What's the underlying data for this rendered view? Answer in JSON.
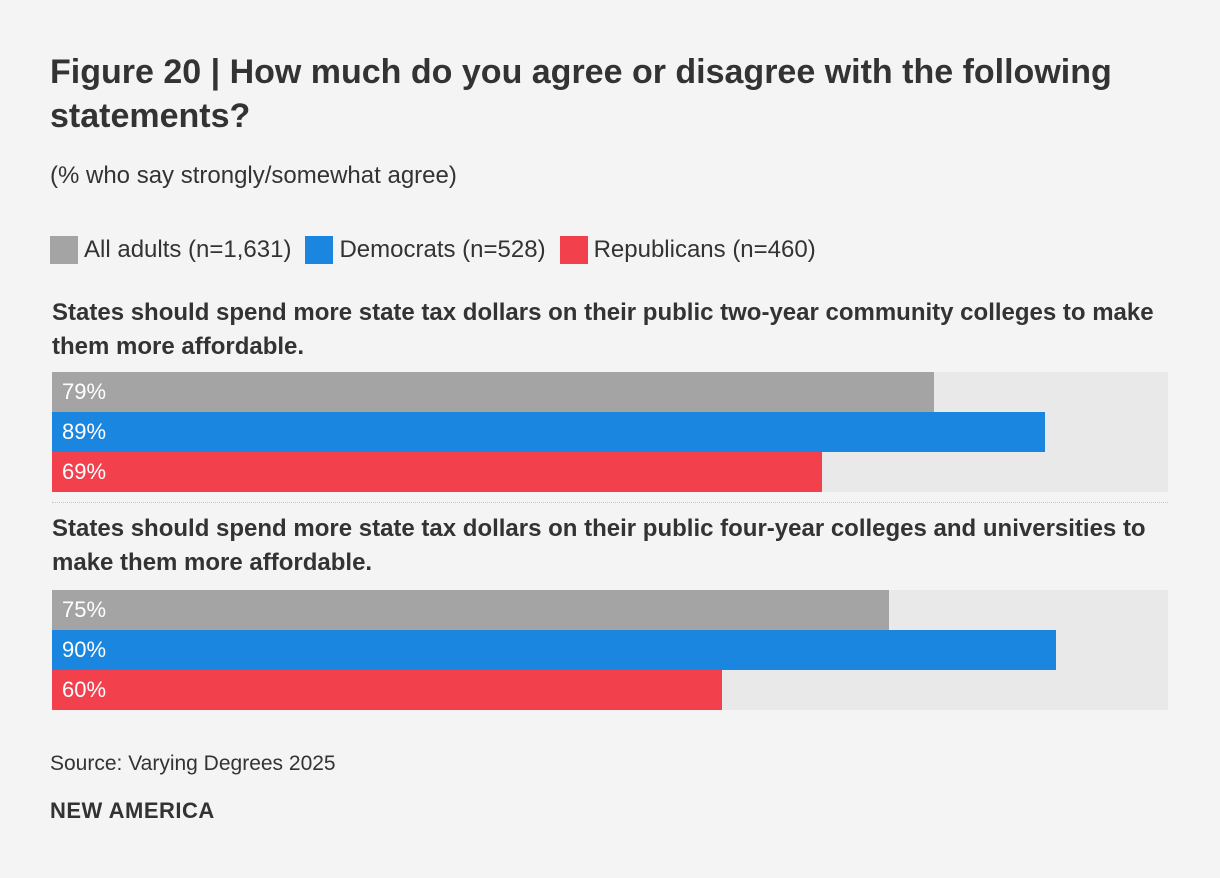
{
  "chart_data": {
    "type": "bar",
    "orientation": "horizontal",
    "title": "Figure 20 | How much do you agree or disagree with the following statements?",
    "subtitle": "(% who say strongly/somewhat agree)",
    "xlim": [
      0,
      100
    ],
    "unit": "%",
    "series": [
      {
        "name": "All adults (n=1,631)",
        "color": "#a4a4a4"
      },
      {
        "name": "Democrats (n=528)",
        "color": "#1a86e0"
      },
      {
        "name": "Republicans (n=460)",
        "color": "#f2404c"
      }
    ],
    "groups": [
      {
        "label": "States should spend more state tax dollars on their public two-year community colleges to make them more affordable.",
        "values": [
          79,
          89,
          69
        ],
        "labels": [
          "79%",
          "89%",
          "69%"
        ]
      },
      {
        "label": "States should spend more state tax dollars on their public four-year colleges and universities to make them more affordable.",
        "values": [
          75,
          90,
          60
        ],
        "labels": [
          "75%",
          "90%",
          "60%"
        ]
      }
    ]
  },
  "footer": {
    "source": "Source: Varying Degrees 2025",
    "brand": "NEW AMERICA"
  }
}
